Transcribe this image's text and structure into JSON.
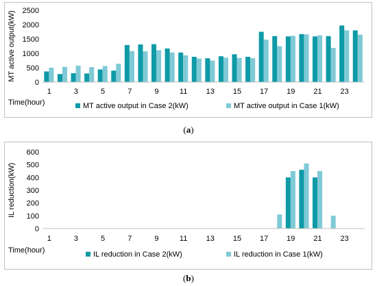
{
  "captions": {
    "a": "a",
    "b": "b"
  },
  "colors": {
    "case2": "#0e9aa7",
    "case1": "#7fcad6",
    "axis": "#bfbfbf",
    "text": "#000000"
  },
  "chart_data": [
    {
      "type": "bar",
      "panel": "a",
      "ylabel": "MT active output(kW)",
      "xlabel": "Time(hour)",
      "ylim": [
        0,
        2500
      ],
      "yticks": [
        0,
        500,
        1000,
        1500,
        2000,
        2500
      ],
      "categories": [
        1,
        2,
        3,
        4,
        5,
        6,
        7,
        8,
        9,
        10,
        11,
        12,
        13,
        14,
        15,
        16,
        17,
        18,
        19,
        20,
        21,
        22,
        23,
        24
      ],
      "xtick_labels": [
        "1",
        "3",
        "5",
        "7",
        "9",
        "11",
        "13",
        "15",
        "17",
        "19",
        "21",
        "23"
      ],
      "legend": "bottom",
      "grid": false,
      "series": [
        {
          "name": "MT active output in Case 2(kW)",
          "color": "#0e9aa7",
          "values": [
            370,
            280,
            310,
            300,
            440,
            400,
            1290,
            1310,
            1320,
            1170,
            1030,
            880,
            830,
            900,
            970,
            880,
            1750,
            1600,
            1590,
            1670,
            1590,
            1600,
            1970,
            1800
          ]
        },
        {
          "name": "MT active output in Case 1(kW)",
          "color": "#7fcad6",
          "values": [
            500,
            530,
            570,
            520,
            560,
            640,
            1080,
            1070,
            1110,
            1030,
            930,
            820,
            750,
            850,
            840,
            830,
            1480,
            1250,
            1610,
            1660,
            1630,
            1190,
            1800,
            1650
          ]
        }
      ]
    },
    {
      "type": "bar",
      "panel": "b",
      "ylabel": "IL reduction(kW)",
      "xlabel": "Time(hour)",
      "ylim": [
        0,
        600
      ],
      "yticks": [
        0,
        100,
        200,
        300,
        400,
        500,
        600
      ],
      "categories": [
        1,
        2,
        3,
        4,
        5,
        6,
        7,
        8,
        9,
        10,
        11,
        12,
        13,
        14,
        15,
        16,
        17,
        18,
        19,
        20,
        21,
        22,
        23,
        24
      ],
      "xtick_labels": [
        "1",
        "3",
        "5",
        "7",
        "9",
        "11",
        "13",
        "15",
        "17",
        "19",
        "21",
        "23"
      ],
      "legend": "bottom",
      "grid": false,
      "series": [
        {
          "name": "IL reduction in Case 2(kW)",
          "color": "#0e9aa7",
          "values": [
            0,
            0,
            0,
            0,
            0,
            0,
            0,
            0,
            0,
            0,
            0,
            0,
            0,
            0,
            0,
            0,
            0,
            0,
            400,
            460,
            400,
            0,
            0,
            0
          ]
        },
        {
          "name": "IL reduction in Case 1(kW)",
          "color": "#7fcad6",
          "values": [
            0,
            0,
            0,
            0,
            0,
            0,
            0,
            0,
            0,
            0,
            0,
            0,
            0,
            0,
            0,
            0,
            0,
            110,
            450,
            510,
            450,
            100,
            0,
            0
          ]
        }
      ]
    }
  ]
}
